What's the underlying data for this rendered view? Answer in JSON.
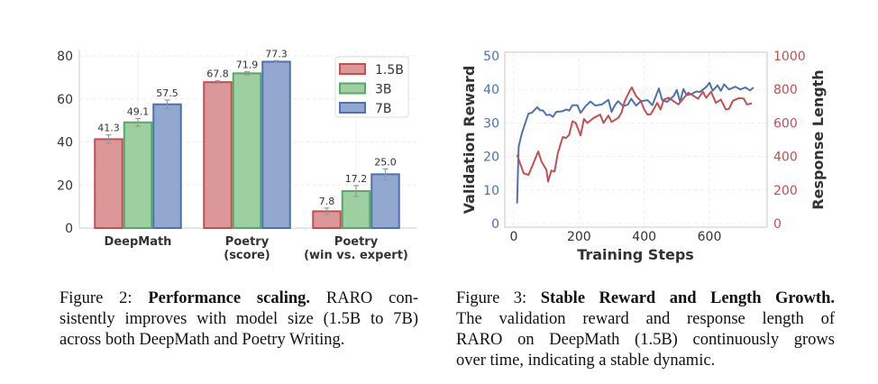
{
  "figure2": {
    "caption": {
      "label": "Figure 2:",
      "title": "Performance scaling.",
      "line1_rest": "RARO con-",
      "line2": "sistently improves with model size (1.5B to 7B)",
      "line3": "across both DeepMath and Poetry Writing."
    }
  },
  "figure3": {
    "caption": {
      "label": "Figure 3:",
      "title": "Stable Reward and Length Growth.",
      "line2": "The validation reward and response length of",
      "line3": "RARO on DeepMath (1.5B) continuously grows",
      "line4": "over time, indicating a stable dynamic."
    }
  },
  "chart_data": [
    {
      "type": "bar",
      "categories": [
        [
          "DeepMath"
        ],
        [
          "Poetry",
          "(score)"
        ],
        [
          "Poetry",
          "(win vs. expert)"
        ]
      ],
      "series": [
        {
          "name": "1.5B",
          "values": [
            41.3,
            67.8,
            7.8
          ],
          "error": [
            2.0,
            0.6,
            1.5
          ],
          "fill": "#dc9798",
          "edge": "#c44e52"
        },
        {
          "name": "3B",
          "values": [
            49.1,
            71.9,
            17.2
          ],
          "error": [
            1.8,
            0.7,
            2.5
          ],
          "fill": "#9dcfa0",
          "edge": "#55a868"
        },
        {
          "name": "7B",
          "values": [
            57.5,
            77.3,
            25.0
          ],
          "error": [
            2.0,
            0.5,
            2.5
          ],
          "fill": "#93a8cf",
          "edge": "#4c72b0"
        }
      ],
      "ylim": [
        0,
        80
      ],
      "yticks": [
        "0",
        "20",
        "40",
        "60",
        "80"
      ],
      "data_labels": true,
      "grid": true,
      "legend": "top-right",
      "title": "",
      "xlabel": "",
      "ylabel": ""
    },
    {
      "type": "line",
      "xlabel": "Training Steps",
      "ylabel": "Validation Reward",
      "ylabel_right": "Response Length",
      "xlim": [
        -5,
        770
      ],
      "xticks": [
        "0",
        "200",
        "400",
        "600"
      ],
      "ylim": [
        0,
        50
      ],
      "yticks": [
        "0",
        "10",
        "20",
        "30",
        "40",
        "50"
      ],
      "ylim_right": [
        0,
        1000
      ],
      "yticks_right": [
        "0",
        "200",
        "400",
        "600",
        "800",
        "1000"
      ],
      "grid": true,
      "series": [
        {
          "axis": "left",
          "color": "#4c72b0",
          "x": [
            10,
            15,
            25,
            35,
            45,
            55,
            65,
            72,
            80,
            90,
            100,
            110,
            120,
            130,
            150,
            160,
            170,
            180,
            195,
            205,
            220,
            235,
            250,
            270,
            290,
            300,
            310,
            320,
            335,
            350,
            360,
            375,
            390,
            410,
            425,
            445,
            455,
            470,
            490,
            500,
            510,
            520,
            530,
            545,
            560,
            570,
            590,
            600,
            610,
            625,
            635,
            645,
            660,
            680,
            695,
            710,
            725,
            735
          ],
          "y": [
            6,
            23,
            27,
            30,
            32.8,
            33,
            34,
            34.7,
            33.8,
            33.7,
            32.3,
            32.5,
            31.8,
            33.3,
            33.5,
            34,
            33.7,
            35.3,
            35.3,
            33,
            35,
            36.4,
            35.2,
            35.5,
            36.9,
            33.3,
            35.3,
            36.5,
            35,
            35.5,
            37.2,
            35.2,
            36.5,
            36.8,
            35.3,
            40.3,
            36.8,
            36.3,
            38,
            39.8,
            36.3,
            40.1,
            38.3,
            38.6,
            39.4,
            39.2,
            40.7,
            42,
            39.6,
            41.2,
            39.6,
            41.5,
            40,
            40.8,
            40,
            40.6,
            39.7,
            40.6
          ]
        },
        {
          "axis": "right",
          "color": "#c44e52",
          "x": [
            10,
            30,
            45,
            60,
            75,
            85,
            100,
            105,
            115,
            125,
            135,
            150,
            160,
            170,
            180,
            190,
            205,
            215,
            225,
            245,
            265,
            275,
            290,
            300,
            320,
            330,
            340,
            355,
            362,
            375,
            390,
            400,
            410,
            420,
            440,
            450,
            460,
            475,
            490,
            505,
            520,
            535,
            550,
            565,
            580,
            590,
            605,
            620,
            635,
            650,
            660,
            672,
            690,
            705,
            715,
            730
          ],
          "y": [
            410,
            300,
            290,
            360,
            430,
            370,
            320,
            250,
            316,
            310,
            420,
            516,
            510,
            530,
            610,
            600,
            526,
            624,
            600,
            630,
            650,
            600,
            644,
            606,
            630,
            660,
            730,
            790,
            812,
            760,
            730,
            680,
            650,
            652,
            720,
            680,
            740,
            750,
            730,
            710,
            746,
            780,
            764,
            744,
            786,
            750,
            786,
            720,
            740,
            680,
            684,
            732,
            748,
            746,
            710,
            716
          ]
        }
      ]
    }
  ]
}
